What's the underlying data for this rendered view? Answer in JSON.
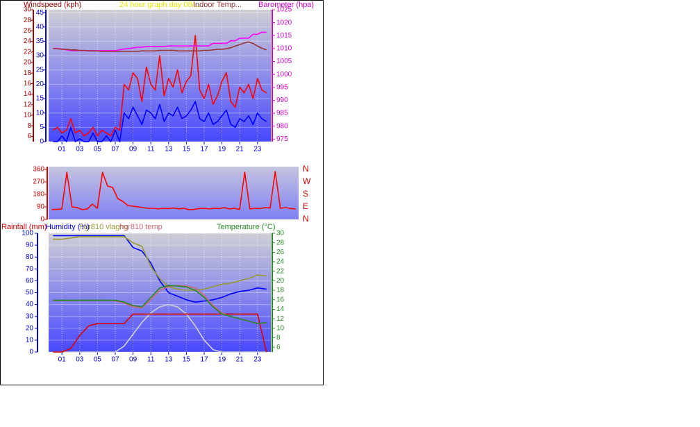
{
  "chart_data": [
    {
      "type": "line",
      "ylabel": "Windspeed (kph)",
      "title": "24 hour graph day  08/...",
      "y2label": "Barometer (hpa)",
      "x": [
        0,
        0.5,
        1,
        1.5,
        2,
        2.5,
        3,
        3.5,
        4,
        4.5,
        5,
        5.5,
        6,
        6.5,
        7,
        7.5,
        8,
        8.5,
        9,
        9.5,
        10,
        10.5,
        11,
        11.5,
        12,
        12.5,
        13,
        13.5,
        14,
        14.5,
        15,
        15.5,
        16,
        16.5,
        17,
        17.5,
        18,
        18.5,
        19,
        19.5,
        20,
        20.5,
        21,
        21.5,
        22,
        22.5,
        23,
        23.5,
        24
      ],
      "xlim": [
        -0.5,
        24.5
      ],
      "xticks": [
        {
          "value": 1,
          "label": "01"
        },
        {
          "value": 3,
          "label": "03"
        },
        {
          "value": 5,
          "label": "05"
        },
        {
          "value": 7,
          "label": "07"
        },
        {
          "value": 9,
          "label": "09"
        },
        {
          "value": 11,
          "label": "11"
        },
        {
          "value": 13,
          "label": "13"
        },
        {
          "value": 15,
          "label": "15"
        },
        {
          "value": 17,
          "label": "17"
        },
        {
          "value": 19,
          "label": "19"
        },
        {
          "value": 21,
          "label": "21"
        },
        {
          "value": 23,
          "label": "23"
        }
      ],
      "ylim": [
        0,
        46
      ],
      "yticks": [
        0,
        5,
        10,
        15,
        20,
        25,
        30,
        35,
        40,
        45
      ],
      "y3lim": [
        5,
        30
      ],
      "y3ticks": [
        6,
        8,
        10,
        12,
        14,
        16,
        18,
        20,
        22,
        24,
        26,
        28,
        30
      ],
      "y2lim": [
        974,
        1025
      ],
      "y2ticks": [
        975,
        980,
        985,
        990,
        995,
        1000,
        1005,
        1010,
        1015,
        1020,
        1025
      ],
      "grid": true,
      "series": [
        {
          "color": "#ff0000",
          "values": [
            4,
            5,
            3,
            4,
            8,
            3,
            4,
            2,
            3,
            5,
            2,
            4,
            3,
            2,
            5,
            4,
            20,
            18,
            24,
            22,
            14,
            26,
            20,
            18,
            30,
            16,
            22,
            19,
            25,
            17,
            21,
            23,
            37,
            18,
            15,
            20,
            13,
            16,
            21,
            24,
            14,
            12,
            19,
            17,
            20,
            15,
            22,
            18,
            17
          ]
        },
        {
          "color": "#0000ff",
          "values": [
            0,
            0,
            2,
            0,
            5,
            0,
            1,
            0,
            0,
            3,
            0,
            0,
            2,
            0,
            4,
            0,
            10,
            8,
            12,
            9,
            6,
            11,
            10,
            8,
            13,
            7,
            10,
            9,
            12,
            8,
            9,
            11,
            14,
            8,
            7,
            10,
            6,
            7,
            9,
            11,
            6,
            5,
            8,
            7,
            9,
            6,
            10,
            8,
            7
          ]
        },
        {
          "color": "#ff00ff",
          "axis": "y2",
          "values": [
            1010,
            1010,
            1009.8,
            1009.5,
            1009.2,
            1009.2,
            1009.2,
            1009.2,
            1009.2,
            1009.2,
            1009.2,
            1009.2,
            1009.2,
            1009.2,
            1009.2,
            1009.5,
            1009.8,
            1010,
            1010.2,
            1010.5,
            1010.5,
            1010.8,
            1010.8,
            1010.8,
            1010.8,
            1010.8,
            1011,
            1011,
            1011,
            1011,
            1011,
            1011,
            1011,
            1011,
            1011,
            1011,
            1012,
            1012,
            1012,
            1012,
            1013,
            1013,
            1014,
            1014,
            1014,
            1015.5,
            1015.5,
            1016.3,
            1016.3
          ]
        },
        {
          "name": "Indoor Temp...",
          "color": "#993333",
          "axis": "y3",
          "values": [
            22.6,
            22.6,
            22.5,
            22.5,
            22.4,
            22.4,
            22.3,
            22.3,
            22.2,
            22.2,
            22.2,
            22.1,
            22.1,
            22.1,
            22.1,
            22.1,
            22.1,
            22.1,
            22.1,
            22.1,
            22.2,
            22.2,
            22.2,
            22.2,
            22.3,
            22.3,
            22.3,
            22.3,
            22.2,
            22.2,
            22.2,
            22.2,
            22.2,
            22.2,
            22.3,
            22.3,
            22.4,
            22.5,
            22.5,
            22.6,
            22.8,
            23.1,
            23.4,
            23.7,
            23.9,
            23.6,
            23.1,
            22.7,
            22.4
          ]
        }
      ]
    },
    {
      "type": "line",
      "x": [
        0,
        0.5,
        1,
        1.5,
        2,
        2.5,
        3,
        3.5,
        4,
        4.5,
        5,
        5.5,
        6,
        6.5,
        7,
        7.5,
        8,
        8.5,
        9,
        9.5,
        10,
        10.5,
        11,
        11.5,
        12,
        12.5,
        13,
        13.5,
        14,
        14.5,
        15,
        15.5,
        16,
        16.5,
        17,
        17.5,
        18,
        18.5,
        19,
        19.5,
        20,
        20.5,
        21,
        21.5,
        22,
        22.5,
        23,
        23.5,
        24
      ],
      "xlim": [
        -0.3,
        24.3
      ],
      "ylim": [
        0,
        380
      ],
      "yticks": [
        0,
        90,
        180,
        270,
        360
      ],
      "y2lim": [
        0,
        380
      ],
      "y2ticks": [
        {
          "value": 0,
          "label": "N"
        },
        {
          "value": 90,
          "label": "E"
        },
        {
          "value": 180,
          "label": "S"
        },
        {
          "value": 270,
          "label": "W"
        },
        {
          "value": 360,
          "label": "N"
        }
      ],
      "grid": false,
      "series": [
        {
          "color": "#ff0000",
          "values": [
            70,
            72,
            75,
            340,
            90,
            85,
            70,
            75,
            110,
            80,
            340,
            240,
            230,
            150,
            130,
            100,
            95,
            90,
            85,
            80,
            80,
            75,
            80,
            78,
            82,
            75,
            80,
            70,
            72,
            78,
            80,
            75,
            80,
            78,
            85,
            75,
            80,
            72,
            340,
            75,
            80,
            78,
            85,
            82,
            345,
            80,
            85,
            78,
            75
          ]
        }
      ]
    },
    {
      "type": "line",
      "x": [
        0,
        1,
        2,
        3,
        4,
        5,
        6,
        7,
        8,
        9,
        10,
        11,
        12,
        13,
        14,
        15,
        16,
        17,
        18,
        19,
        20,
        21,
        22,
        23,
        24
      ],
      "xlim": [
        -0.5,
        24.5
      ],
      "xticks": [
        {
          "value": 1,
          "label": "01"
        },
        {
          "value": 3,
          "label": "03"
        },
        {
          "value": 5,
          "label": "05"
        },
        {
          "value": 7,
          "label": "07"
        },
        {
          "value": 9,
          "label": "09"
        },
        {
          "value": 11,
          "label": "11"
        },
        {
          "value": 13,
          "label": "13"
        },
        {
          "value": 15,
          "label": "15"
        },
        {
          "value": 17,
          "label": "17"
        },
        {
          "value": 19,
          "label": "19"
        },
        {
          "value": 21,
          "label": "21"
        },
        {
          "value": 23,
          "label": "23"
        }
      ],
      "ylim": [
        0,
        100
      ],
      "yticks": [
        0,
        10,
        20,
        30,
        40,
        50,
        60,
        70,
        80,
        90,
        100
      ],
      "y2lim": [
        5,
        30
      ],
      "y2ticks": [
        6,
        8,
        10,
        12,
        14,
        16,
        18,
        20,
        22,
        24,
        26,
        28,
        30
      ],
      "grid": true,
      "series": [
        {
          "color": "#d0d0d0",
          "values": [
            0,
            0,
            0,
            0,
            0,
            0,
            0,
            0,
            5,
            15,
            25,
            33,
            38,
            40,
            38,
            32,
            22,
            10,
            2,
            0,
            0,
            0,
            0,
            0,
            0
          ]
        },
        {
          "name": "Rainfall (mm)",
          "color": "#dd0000",
          "values": [
            0,
            0,
            3,
            14,
            22,
            24,
            24,
            24,
            24,
            32,
            32,
            32,
            32,
            32,
            32,
            32,
            32,
            32,
            32,
            32,
            32,
            32,
            32,
            32,
            0
          ]
        },
        {
          "name": "Humidity (%)",
          "color": "#0000ff",
          "values": [
            98,
            98,
            98,
            98,
            98,
            98,
            98,
            98,
            98,
            88,
            85,
            75,
            60,
            50,
            47,
            44,
            42,
            43,
            44,
            46,
            49,
            51,
            52,
            54,
            53
          ]
        },
        {
          "name": "hgr810 vlaghg",
          "color": "#999933",
          "values": [
            95,
            95,
            96,
            97,
            97,
            97,
            97,
            97,
            97,
            92,
            89,
            72,
            62,
            55,
            53,
            52,
            52,
            53,
            55,
            57,
            58,
            60,
            62,
            65,
            64
          ]
        },
        {
          "name": "hgr810 temp",
          "color": "#cc6677",
          "axis": "y2",
          "values": [
            15.8,
            15.8,
            15.8,
            15.9,
            15.9,
            15.9,
            15.9,
            15.8,
            15.3,
            14.5,
            14.3,
            16,
            18,
            18.8,
            19,
            18.9,
            18.5,
            17,
            14.8,
            13.2,
            12.5,
            12,
            11.5,
            11,
            11.1
          ]
        },
        {
          "name": "Temperature (°C)",
          "color": "#228822",
          "axis": "y2",
          "values": [
            15.9,
            15.9,
            15.9,
            15.9,
            15.9,
            15.9,
            15.9,
            15.9,
            15.5,
            14.8,
            14.5,
            16.5,
            18.5,
            19,
            18.9,
            18.7,
            18,
            16.5,
            14.5,
            13,
            12.5,
            12,
            11.5,
            11,
            11.2
          ]
        }
      ]
    }
  ]
}
